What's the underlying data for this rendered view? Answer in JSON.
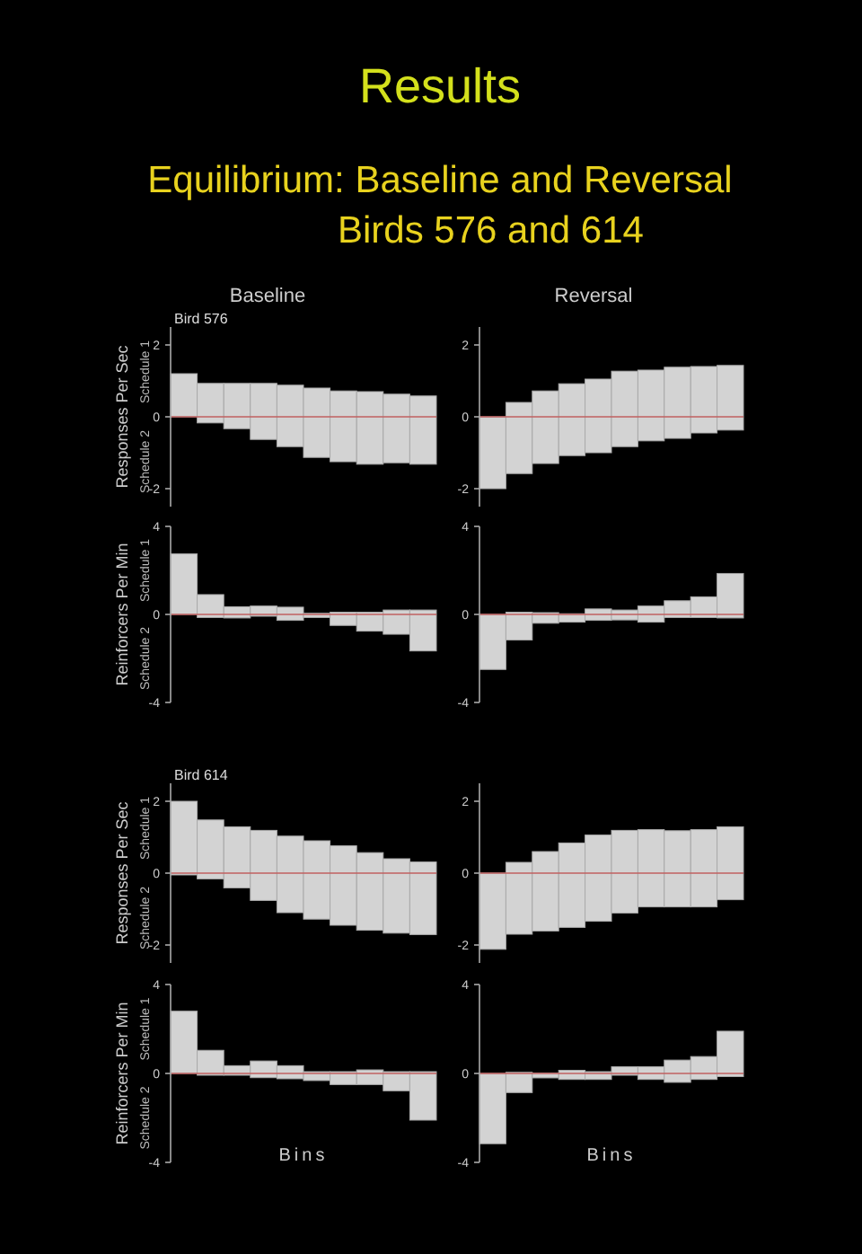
{
  "chart_data": [
    {
      "type": "other",
      "title": "Results",
      "subtitle": "Equilibrium: Baseline and Reversal\nBirds 576 and 614"
    },
    {
      "type": "bar",
      "title": "Baseline",
      "subtitle": "Bird 576",
      "ylabel": "Responses Per Sec",
      "annotations": [
        "Schedule 1",
        "Schedule 2"
      ],
      "categories": [
        null,
        null,
        null,
        null,
        null,
        null,
        null,
        null,
        null,
        null
      ],
      "base": [
        0,
        -0.17,
        -0.33,
        -0.63,
        -0.83,
        -1.13,
        -1.25,
        -1.32,
        -1.28,
        -1.32
      ],
      "values": [
        1.2,
        1.1,
        1.26,
        1.56,
        1.71,
        1.93,
        1.97,
        2.02,
        1.91,
        1.9
      ],
      "color": "#d3d3d3",
      "ylim": [
        -2.5,
        2.5
      ],
      "yticks": [
        -2,
        0,
        2
      ],
      "tick_labels": "y",
      "ref_lines": [
        {
          "axis": "y",
          "value": 0,
          "color": "#c06060"
        }
      ]
    },
    {
      "type": "bar",
      "title": "Reversal",
      "categories": [
        null,
        null,
        null,
        null,
        null,
        null,
        null,
        null,
        null,
        null
      ],
      "base": [
        -2,
        -1.58,
        -1.3,
        -1.08,
        -1,
        -0.83,
        -0.67,
        -0.6,
        -0.45,
        -0.37
      ],
      "values": [
        2,
        1.98,
        2.02,
        2,
        2.05,
        2.1,
        1.97,
        1.98,
        1.85,
        1.8
      ],
      "color": "#d3d3d3",
      "ylim": [
        -2.5,
        2.5
      ],
      "yticks": [
        -2,
        0,
        2
      ],
      "tick_labels": "y",
      "ref_lines": [
        {
          "axis": "y",
          "value": 0,
          "color": "#c06060"
        }
      ]
    },
    {
      "type": "bar",
      "ylabel": "Reinforcers Per Min",
      "annotations": [
        "Schedule 1",
        "Schedule 2"
      ],
      "categories": [
        null,
        null,
        null,
        null,
        null,
        null,
        null,
        null,
        null,
        null
      ],
      "base": [
        0,
        -0.14,
        -0.16,
        -0.08,
        -0.27,
        -0.14,
        -0.5,
        -0.76,
        -0.9,
        -1.66
      ],
      "values": [
        2.75,
        1.04,
        0.51,
        0.46,
        0.6,
        0.19,
        0.6,
        0.86,
        1.1,
        1.86
      ],
      "color": "#d3d3d3",
      "ylim": [
        -4,
        4
      ],
      "yticks": [
        -4,
        0,
        4
      ],
      "tick_labels": "y",
      "ref_lines": [
        {
          "axis": "y",
          "value": 0,
          "color": "#c06060"
        }
      ]
    },
    {
      "type": "bar",
      "categories": [
        null,
        null,
        null,
        null,
        null,
        null,
        null,
        null,
        null,
        null
      ],
      "base": [
        -2.5,
        -1.16,
        -0.4,
        -0.35,
        -0.27,
        -0.25,
        -0.35,
        -0.14,
        -0.14,
        -0.16
      ],
      "values": [
        2.5,
        1.26,
        0.48,
        0.38,
        0.52,
        0.45,
        0.73,
        0.76,
        0.94,
        2.02
      ],
      "color": "#d3d3d3",
      "ylim": [
        -4,
        4
      ],
      "yticks": [
        -4,
        0,
        4
      ],
      "tick_labels": "y",
      "ref_lines": [
        {
          "axis": "y",
          "value": 0,
          "color": "#c06060"
        }
      ]
    },
    {
      "type": "bar",
      "subtitle": "Bird 614",
      "ylabel": "Responses Per Sec",
      "annotations": [
        "Schedule 1",
        "Schedule 2"
      ],
      "categories": [
        null,
        null,
        null,
        null,
        null,
        null,
        null,
        null,
        null,
        null
      ],
      "base": [
        -0.05,
        -0.16,
        -0.41,
        -0.76,
        -1.1,
        -1.28,
        -1.45,
        -1.59,
        -1.67,
        -1.71
      ],
      "values": [
        2.05,
        1.64,
        1.7,
        1.95,
        2.13,
        2.18,
        2.21,
        2.16,
        2.07,
        2.02
      ],
      "color": "#d3d3d3",
      "ylim": [
        -2.5,
        2.5
      ],
      "yticks": [
        -2,
        0,
        2
      ],
      "tick_labels": "y",
      "ref_lines": [
        {
          "axis": "y",
          "value": 0,
          "color": "#c06060"
        }
      ]
    },
    {
      "type": "bar",
      "categories": [
        null,
        null,
        null,
        null,
        null,
        null,
        null,
        null,
        null,
        null
      ],
      "base": [
        -2.12,
        -1.7,
        -1.61,
        -1.51,
        -1.34,
        -1.11,
        -0.94,
        -0.94,
        -0.94,
        -0.74
      ],
      "values": [
        2.12,
        2,
        2.21,
        2.35,
        2.4,
        2.3,
        2.15,
        2.12,
        2.15,
        2.03
      ],
      "color": "#d3d3d3",
      "ylim": [
        -2.5,
        2.5
      ],
      "yticks": [
        -2,
        0,
        2
      ],
      "tick_labels": "y",
      "ref_lines": [
        {
          "axis": "y",
          "value": 0,
          "color": "#c06060"
        }
      ]
    },
    {
      "type": "bar",
      "xlabel": "Bins",
      "ylabel": "Reinforcers Per Min",
      "annotations": [
        "Schedule 1",
        "Schedule 2"
      ],
      "categories": [
        null,
        null,
        null,
        null,
        null,
        null,
        null,
        null,
        null,
        null
      ],
      "base": [
        0,
        -0.08,
        -0.08,
        -0.19,
        -0.24,
        -0.32,
        -0.5,
        -0.5,
        -0.78,
        -2.1
      ],
      "values": [
        2.8,
        1.12,
        0.43,
        0.75,
        0.59,
        0.4,
        0.58,
        0.66,
        0.86,
        2.18
      ],
      "color": "#d3d3d3",
      "ylim": [
        -4,
        4
      ],
      "yticks": [
        -4,
        0,
        4
      ],
      "tick_labels": "y",
      "ref_lines": [
        {
          "axis": "y",
          "value": 0,
          "color": "#c06060"
        }
      ]
    },
    {
      "type": "bar",
      "xlabel": "Bins",
      "categories": [
        null,
        null,
        null,
        null,
        null,
        null,
        null,
        null,
        null,
        null
      ],
      "base": [
        -3.16,
        -0.86,
        -0.2,
        -0.27,
        -0.27,
        -0.08,
        -0.27,
        -0.4,
        -0.27,
        -0.14
      ],
      "values": [
        3.16,
        0.91,
        0.22,
        0.41,
        0.35,
        0.38,
        0.57,
        1,
        1.03,
        2.04
      ],
      "color": "#d3d3d3",
      "ylim": [
        -4,
        4
      ],
      "yticks": [
        -4,
        0,
        4
      ],
      "tick_labels": "y",
      "ref_lines": [
        {
          "axis": "y",
          "value": 0,
          "color": "#c06060"
        }
      ]
    }
  ]
}
